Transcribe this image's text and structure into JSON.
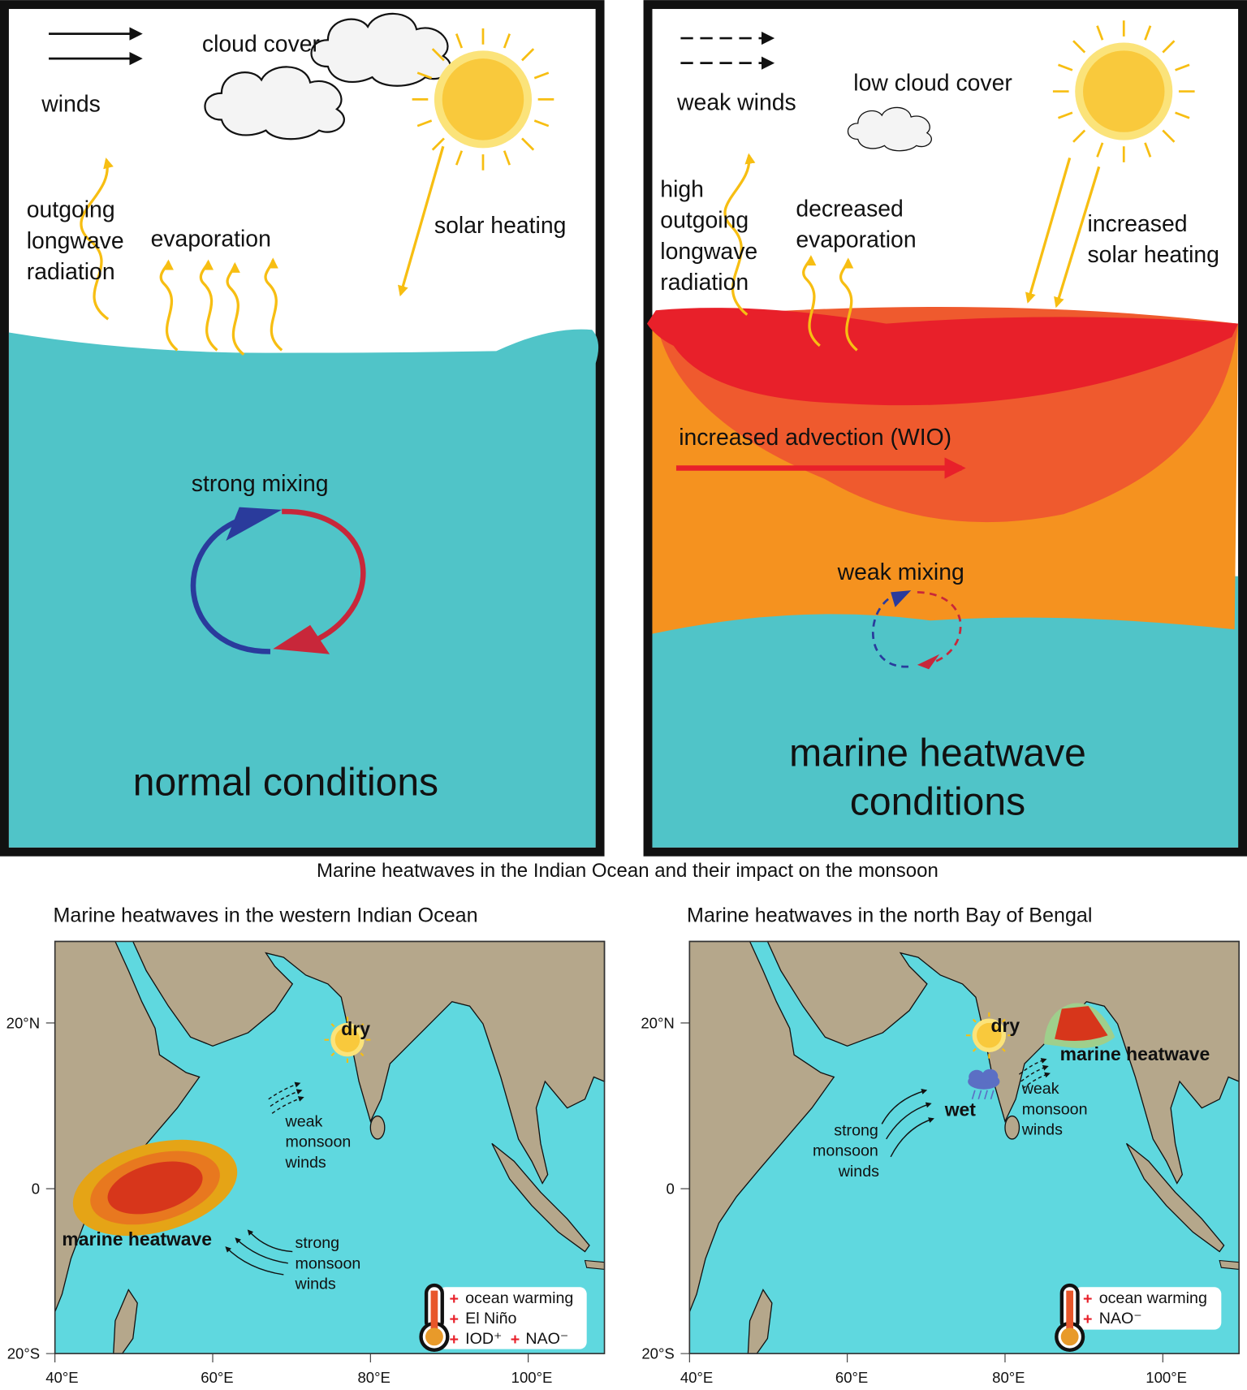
{
  "normal": {
    "winds": "winds",
    "cloud_cover": "cloud cover",
    "outgoing_lw": [
      "outgoing",
      "longwave",
      "radiation"
    ],
    "evaporation": "evaporation",
    "solar_heating": "solar heating",
    "mixing": "strong mixing",
    "title": "normal conditions"
  },
  "heatwave": {
    "winds": "weak winds",
    "cloud_cover": "low cloud cover",
    "outgoing_lw": [
      "high",
      "outgoing",
      "longwave",
      "radiation"
    ],
    "evaporation": [
      "decreased",
      "evaporation"
    ],
    "solar_heating": [
      "increased",
      "solar heating"
    ],
    "advection": "increased advection (WIO)",
    "mixing": "weak mixing",
    "title": [
      "marine heatwave",
      "conditions"
    ]
  },
  "caption": "Marine heatwaves in the Indian Ocean and their impact on the monsoon",
  "map_axes": {
    "lat": [
      "20°N",
      "0",
      "20°S"
    ],
    "lon": [
      "40°E",
      "60°E",
      "80°E",
      "100°E"
    ]
  },
  "maps": [
    {
      "title": "Marine heatwaves in the western Indian Ocean",
      "dry": "dry",
      "weak_winds": [
        "weak",
        "monsoon",
        "winds"
      ],
      "strong_winds": [
        "strong",
        "monsoon",
        "winds"
      ],
      "heatwave": "marine heatwave",
      "legend": [
        "ocean warming",
        "El Niño",
        "IOD⁺",
        "NAO⁻"
      ]
    },
    {
      "title": "Marine heatwaves in the north Bay of Bengal",
      "dry": "dry",
      "wet": "wet",
      "heatwave": "marine heatwave",
      "weak_winds": [
        "weak",
        "monsoon",
        "winds"
      ],
      "strong_winds": [
        "strong",
        "monsoon",
        "winds"
      ],
      "legend": [
        "ocean warming",
        "NAO⁻"
      ]
    }
  ]
}
